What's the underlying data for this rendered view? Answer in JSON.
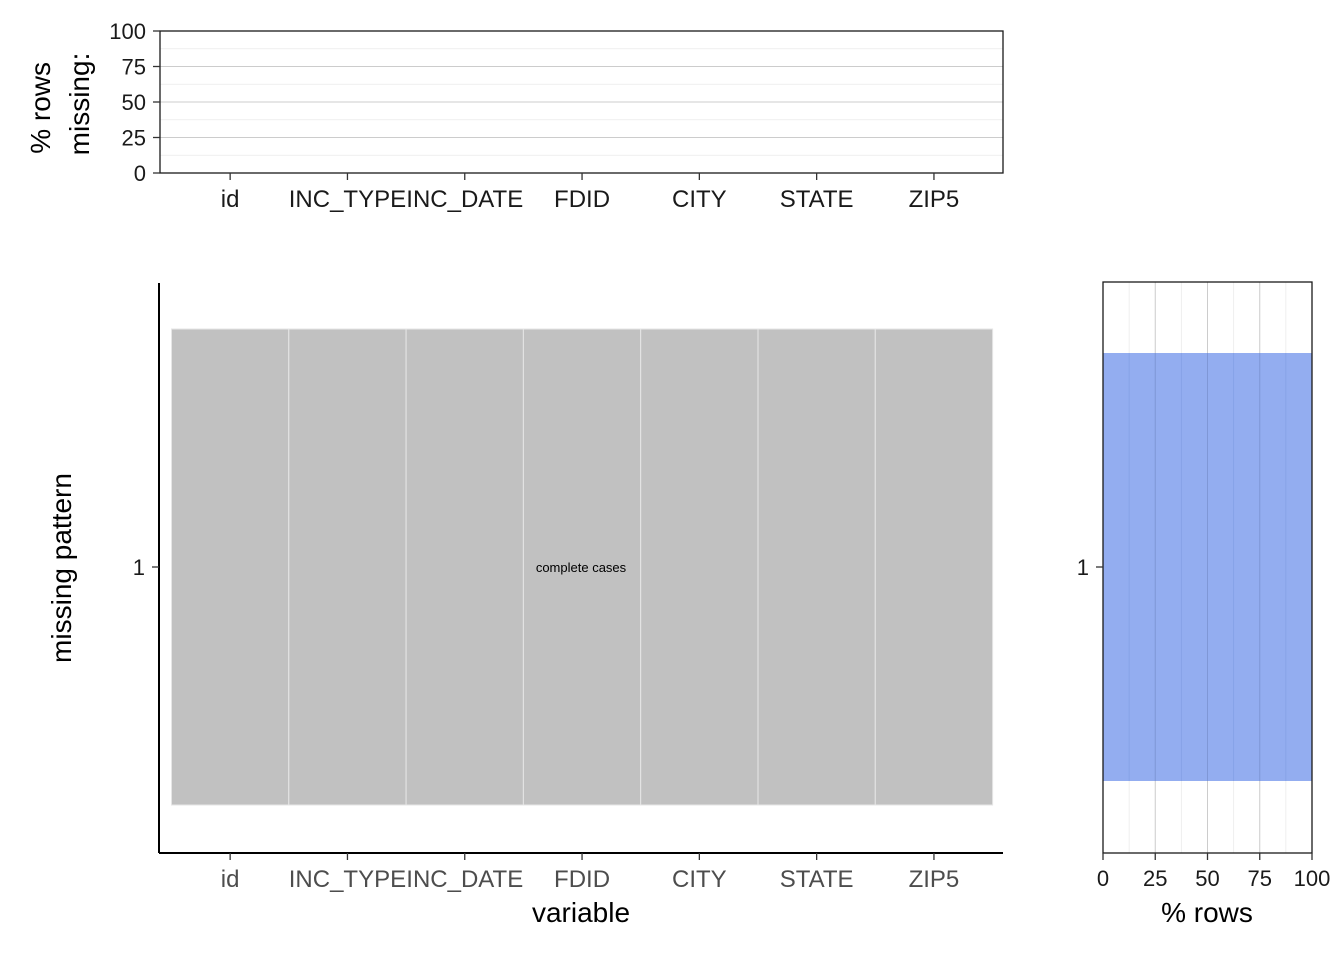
{
  "chart_data": [
    {
      "type": "bar",
      "panel": "top",
      "categories": [
        "id",
        "INC_TYPE",
        "INC_DATE",
        "FDID",
        "CITY",
        "STATE",
        "ZIP5"
      ],
      "values": [
        0,
        0,
        0,
        0,
        0,
        0,
        0
      ],
      "ylabel_lines": [
        "% rows",
        "missing:"
      ],
      "ylim": [
        0,
        100
      ],
      "yticks": [
        "0",
        "25",
        "50",
        "75",
        "100"
      ],
      "grid": true
    },
    {
      "type": "heatmap",
      "panel": "main",
      "x": [
        "id",
        "INC_TYPE",
        "INC_DATE",
        "FDID",
        "CITY",
        "STATE",
        "ZIP5"
      ],
      "y": [
        "1"
      ],
      "cells": [
        [
          "observed",
          "observed",
          "observed",
          "observed",
          "observed",
          "observed",
          "observed"
        ]
      ],
      "annotation": "complete cases",
      "xlabel": "variable",
      "ylabel": "missing pattern",
      "colors": {
        "observed": "#c1c1c1",
        "cell_border": "#e6e6e6"
      }
    },
    {
      "type": "bar",
      "panel": "right",
      "orientation": "horizontal",
      "categories": [
        "1"
      ],
      "values": [
        100
      ],
      "xlabel": "% rows",
      "xlim": [
        0,
        100
      ],
      "xticks": [
        "0",
        "25",
        "50",
        "75",
        "100"
      ],
      "bar_color": "#8aa6ef",
      "grid": true
    }
  ]
}
